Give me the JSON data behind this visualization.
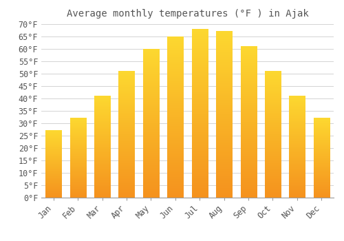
{
  "title": "Average monthly temperatures (°F ) in Ajak",
  "months": [
    "Jan",
    "Feb",
    "Mar",
    "Apr",
    "May",
    "Jun",
    "Jul",
    "Aug",
    "Sep",
    "Oct",
    "Nov",
    "Dec"
  ],
  "values": [
    27,
    32,
    41,
    51,
    60,
    65,
    68,
    67,
    61,
    51,
    41,
    32
  ],
  "bar_color_top": "#FDD830",
  "bar_color_bottom": "#F5921E",
  "background_color": "#FFFFFF",
  "grid_color": "#CCCCCC",
  "text_color": "#555555",
  "ylim": [
    0,
    70
  ],
  "ytick_step": 5,
  "title_fontsize": 10,
  "tick_fontsize": 8.5,
  "font_family": "monospace"
}
